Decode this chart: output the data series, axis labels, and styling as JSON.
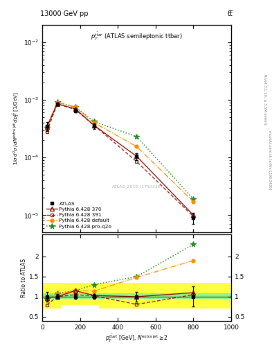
{
  "title_left": "13000 GeV pp",
  "title_right": "tt̅",
  "plot_title": "$p_T^{t\\bar{t}ar}$ (ATLAS semileptonic ttbar)",
  "watermark": "ATLAS_2019_I1750330",
  "right_label1": "Rivet 3.1.10, ≥ 3.5M events",
  "right_label2": "mcplots.cern.ch [arXiv:1306.3436]",
  "xlabel": "$p_T^{t\\bar{t}ar{t}}$ [GeV], $N^{\\mathrm{extra\\,jet}} \\geq 2$",
  "ylabel": "$1/\\sigma\\, d^2\\sigma / dN^{\\mathrm{extra\\,jet}} dp_T^{t\\bar{t}}$ [1/GeV]",
  "ylabel_ratio": "Ratio to ATLAS",
  "x_points": [
    25,
    80,
    175,
    275,
    500,
    800
  ],
  "atlas_y": [
    0.00035,
    0.00085,
    0.00065,
    0.00035,
    0.000105,
    9e-06
  ],
  "atlas_yerr_lo": [
    6e-05,
    5e-05,
    5e-05,
    4e-05,
    1.5e-05,
    2e-06
  ],
  "atlas_yerr_hi": [
    6e-05,
    5e-05,
    5e-05,
    4e-05,
    1.5e-05,
    2e-06
  ],
  "py370_y": [
    0.00034,
    0.00085,
    0.0007,
    0.00036,
    0.000105,
    1e-05
  ],
  "py391_y": [
    0.00028,
    0.00085,
    0.00068,
    0.00036,
    8.5e-05,
    9.5e-06
  ],
  "pydef_y": [
    0.00035,
    0.0009,
    0.00075,
    0.0004,
    0.000155,
    1.7e-05
  ],
  "pyproq2o_y": [
    0.00033,
    0.00092,
    0.00075,
    0.00042,
    0.00023,
    1.9e-05
  ],
  "py370_ratio": [
    0.97,
    1.0,
    1.15,
    1.03,
    1.0,
    1.1
  ],
  "py391_ratio": [
    0.8,
    1.0,
    1.05,
    1.02,
    0.81,
    1.05
  ],
  "pydef_ratio": [
    1.0,
    1.06,
    1.15,
    1.14,
    1.48,
    1.9
  ],
  "pyproq2o_ratio": [
    0.94,
    1.08,
    1.15,
    1.3,
    1.5,
    2.3
  ],
  "atlas_ratio_errlo": [
    0.12,
    0.06,
    0.06,
    0.06,
    0.12,
    0.25
  ],
  "atlas_ratio_errhi": [
    0.12,
    0.06,
    0.06,
    0.06,
    0.12,
    0.25
  ],
  "band_xedges": [
    0,
    100,
    300,
    650,
    1000
  ],
  "band_green_lo": [
    0.95,
    0.95,
    0.95,
    0.95
  ],
  "band_green_hi": [
    1.08,
    1.08,
    1.08,
    1.08
  ],
  "band_yellow_lo": [
    0.7,
    0.8,
    0.7,
    0.7
  ],
  "band_yellow_hi": [
    1.35,
    1.35,
    1.35,
    1.35
  ],
  "xlim": [
    0,
    1000
  ],
  "ylim_main": [
    5e-06,
    0.02
  ],
  "ylim_ratio": [
    0.39,
    2.55
  ],
  "yticks_ratio": [
    0.5,
    1.0,
    1.5,
    2.0
  ],
  "color_atlas": "#000000",
  "color_py370": "#8b0000",
  "color_py391": "#8b1a1a",
  "color_pydef": "#ff8c00",
  "color_pyproq2o": "#228b22"
}
